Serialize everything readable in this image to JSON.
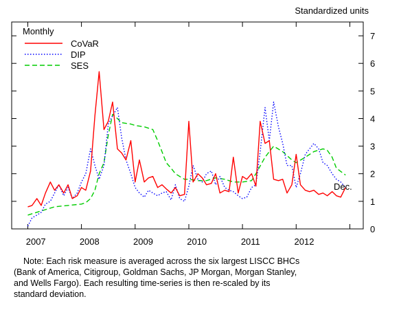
{
  "chart_data": {
    "type": "line",
    "unit_label": "Standardized units",
    "frequency_label": "Monthly",
    "annotation": "Dec.",
    "x_tick_labels": [
      "2007",
      "2008",
      "2009",
      "2010",
      "2011",
      "2012"
    ],
    "y_ticks": [
      0,
      1,
      2,
      3,
      4,
      5,
      6,
      7
    ],
    "ylim": [
      0,
      7.5
    ],
    "xlim": [
      2006.7,
      2013.25
    ],
    "y_axis_side": "right",
    "grid": false,
    "legend_position": "top-left",
    "series": [
      {
        "name": "CoVaR",
        "color": "#ff0000",
        "style": "solid",
        "x": [
          2007.0,
          2007.08,
          2007.17,
          2007.25,
          2007.33,
          2007.42,
          2007.5,
          2007.58,
          2007.67,
          2007.75,
          2007.83,
          2007.92,
          2008.0,
          2008.08,
          2008.17,
          2008.25,
          2008.33,
          2008.42,
          2008.5,
          2008.58,
          2008.67,
          2008.75,
          2008.83,
          2008.92,
          2009.0,
          2009.08,
          2009.17,
          2009.25,
          2009.33,
          2009.42,
          2009.5,
          2009.58,
          2009.67,
          2009.75,
          2009.83,
          2009.92,
          2010.0,
          2010.08,
          2010.17,
          2010.25,
          2010.33,
          2010.42,
          2010.5,
          2010.58,
          2010.67,
          2010.75,
          2010.83,
          2010.92,
          2011.0,
          2011.08,
          2011.17,
          2011.25,
          2011.33,
          2011.42,
          2011.5,
          2011.58,
          2011.67,
          2011.75,
          2011.83,
          2011.92,
          2012.0,
          2012.08,
          2012.17,
          2012.25,
          2012.33,
          2012.42,
          2012.5,
          2012.58,
          2012.67,
          2012.75,
          2012.83,
          2012.92
        ],
        "y": [
          0.8,
          0.85,
          1.1,
          0.85,
          1.3,
          1.7,
          1.4,
          1.6,
          1.3,
          1.6,
          1.1,
          1.2,
          1.5,
          1.4,
          2.1,
          4.1,
          5.7,
          3.6,
          3.9,
          4.6,
          2.9,
          2.75,
          2.5,
          3.2,
          1.7,
          2.5,
          1.7,
          1.85,
          1.9,
          1.5,
          1.6,
          1.45,
          1.3,
          1.5,
          1.2,
          1.25,
          3.9,
          1.7,
          2.0,
          1.85,
          1.6,
          1.65,
          2.0,
          1.3,
          1.4,
          1.35,
          2.6,
          1.3,
          1.9,
          1.8,
          2.0,
          1.55,
          3.9,
          3.1,
          3.2,
          1.8,
          1.75,
          1.8,
          1.3,
          1.6,
          2.7,
          1.6,
          1.4,
          1.35,
          1.4,
          1.25,
          1.3,
          1.2,
          1.35,
          1.2,
          1.15,
          1.5
        ]
      },
      {
        "name": "DIP",
        "color": "#0000ff",
        "style": "dotted",
        "x": [
          2007.0,
          2007.08,
          2007.17,
          2007.25,
          2007.33,
          2007.42,
          2007.5,
          2007.58,
          2007.67,
          2007.75,
          2007.83,
          2007.92,
          2008.0,
          2008.08,
          2008.17,
          2008.25,
          2008.33,
          2008.42,
          2008.5,
          2008.58,
          2008.67,
          2008.75,
          2008.83,
          2008.92,
          2009.0,
          2009.08,
          2009.17,
          2009.25,
          2009.33,
          2009.42,
          2009.5,
          2009.58,
          2009.67,
          2009.75,
          2009.83,
          2009.92,
          2010.0,
          2010.08,
          2010.17,
          2010.25,
          2010.33,
          2010.42,
          2010.5,
          2010.58,
          2010.67,
          2010.75,
          2010.83,
          2010.92,
          2011.0,
          2011.08,
          2011.17,
          2011.25,
          2011.33,
          2011.42,
          2011.5,
          2011.58,
          2011.67,
          2011.75,
          2011.83,
          2011.92,
          2012.0,
          2012.08,
          2012.17,
          2012.25,
          2012.33,
          2012.42,
          2012.5,
          2012.58,
          2012.67,
          2012.75,
          2012.83,
          2012.92
        ],
        "y": [
          0.1,
          0.4,
          0.5,
          0.6,
          0.9,
          1.0,
          1.3,
          1.6,
          1.2,
          1.5,
          1.1,
          1.3,
          1.7,
          2.0,
          2.9,
          2.3,
          1.8,
          2.3,
          3.8,
          4.1,
          4.4,
          3.3,
          2.5,
          2.0,
          1.5,
          1.3,
          1.15,
          1.4,
          1.3,
          1.2,
          1.3,
          1.35,
          1.05,
          1.6,
          1.1,
          1.0,
          1.55,
          2.3,
          1.8,
          1.7,
          2.0,
          2.1,
          1.6,
          1.9,
          1.5,
          1.4,
          1.35,
          1.2,
          1.1,
          1.15,
          1.5,
          1.6,
          2.8,
          4.4,
          3.2,
          4.6,
          3.7,
          3.1,
          2.3,
          2.3,
          1.5,
          2.0,
          2.7,
          2.9,
          3.1,
          2.9,
          2.4,
          2.3,
          2.0,
          1.8,
          1.7,
          1.5
        ]
      },
      {
        "name": "SES",
        "color": "#00cc00",
        "style": "dashed",
        "x": [
          2007.0,
          2007.25,
          2007.5,
          2007.75,
          2008.0,
          2008.08,
          2008.17,
          2008.25,
          2008.33,
          2008.42,
          2008.5,
          2008.58,
          2008.67,
          2008.75,
          2008.92,
          2009.0,
          2009.17,
          2009.33,
          2009.42,
          2009.5,
          2009.58,
          2009.67,
          2009.75,
          2009.83,
          2009.92,
          2010.0,
          2010.17,
          2010.33,
          2010.5,
          2010.67,
          2010.83,
          2011.0,
          2011.17,
          2011.25,
          2011.42,
          2011.58,
          2011.75,
          2011.92,
          2012.0,
          2012.17,
          2012.33,
          2012.5,
          2012.58,
          2012.67,
          2012.75,
          2012.92
        ],
        "y": [
          0.5,
          0.65,
          0.8,
          0.85,
          0.9,
          0.95,
          1.1,
          1.4,
          2.0,
          2.4,
          3.4,
          4.15,
          4.0,
          3.85,
          3.8,
          3.75,
          3.7,
          3.6,
          3.2,
          2.8,
          2.4,
          2.2,
          2.0,
          1.9,
          1.8,
          1.8,
          1.75,
          1.75,
          1.85,
          1.8,
          1.7,
          1.7,
          1.75,
          2.0,
          2.6,
          3.0,
          2.8,
          2.5,
          2.4,
          2.6,
          2.8,
          2.9,
          2.85,
          2.6,
          2.2,
          1.95
        ]
      }
    ],
    "note": [
      "Note: Each risk measure is averaged across the six largest LISCC BHCs",
      "(Bank of America, Citigroup, Goldman Sachs, JP Morgan, Morgan Stanley,",
      "and Wells Fargo). Each resulting time-series is then re-scaled by its",
      "standard deviation."
    ]
  }
}
